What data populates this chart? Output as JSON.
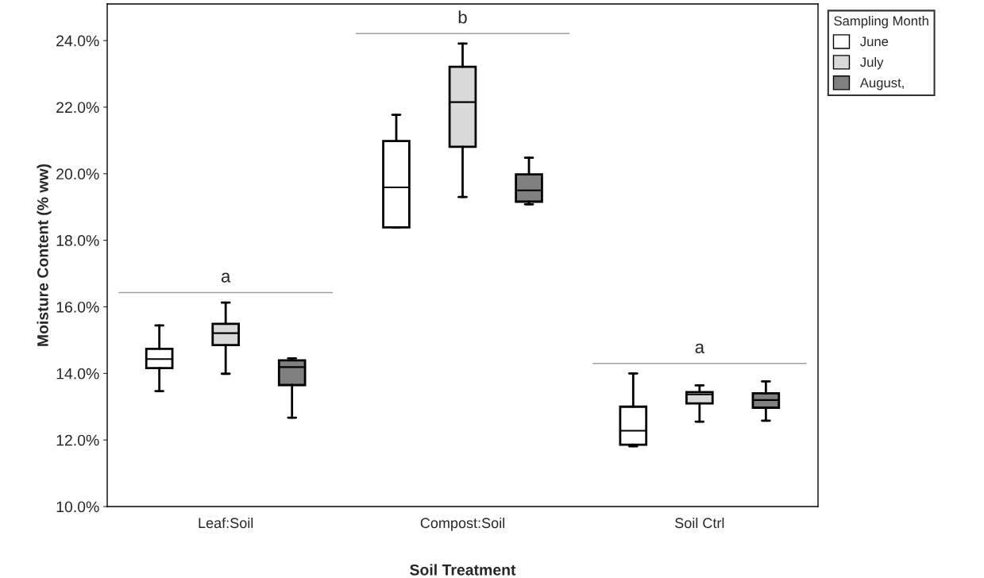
{
  "chart_data": {
    "type": "box",
    "xlabel": "Soil Treatment",
    "ylabel": "Moisture Content (% ww)",
    "legend_title": "Sampling Month",
    "categories": [
      "Leaf:Soil",
      "Compost:Soil",
      "Soil Ctrl"
    ],
    "series": [
      {
        "name": "June",
        "color": "#ffffff",
        "boxes": [
          {
            "low": 13.47,
            "q1": 14.16,
            "median": 14.43,
            "q3": 14.74,
            "high": 15.44
          },
          {
            "low": 18.39,
            "q1": 18.39,
            "median": 19.59,
            "q3": 20.98,
            "high": 21.77
          },
          {
            "low": 11.81,
            "q1": 11.86,
            "median": 12.28,
            "q3": 13.0,
            "high": 14.0
          }
        ]
      },
      {
        "name": "July",
        "color": "#d9d9d9",
        "boxes": [
          {
            "low": 13.99,
            "q1": 14.85,
            "median": 15.21,
            "q3": 15.49,
            "high": 16.13
          },
          {
            "low": 19.3,
            "q1": 20.81,
            "median": 22.15,
            "q3": 23.21,
            "high": 23.91
          },
          {
            "low": 12.55,
            "q1": 13.1,
            "median": 13.37,
            "q3": 13.44,
            "high": 13.64
          }
        ]
      },
      {
        "name": "August,",
        "color": "#808080",
        "boxes": [
          {
            "low": 12.67,
            "q1": 13.65,
            "median": 14.19,
            "q3": 14.39,
            "high": 14.45
          },
          {
            "low": 19.08,
            "q1": 19.16,
            "median": 19.5,
            "q3": 19.98,
            "high": 20.48
          },
          {
            "low": 12.58,
            "q1": 12.97,
            "median": 13.2,
            "q3": 13.4,
            "high": 13.76
          }
        ]
      }
    ],
    "annotations": [
      "a",
      "b",
      "a"
    ],
    "ylim": [
      10,
      25.1
    ],
    "yticks": [
      {
        "value": 10,
        "label": "10.0%"
      },
      {
        "value": 12,
        "label": "12.0%"
      },
      {
        "value": 14,
        "label": "14.0%"
      },
      {
        "value": 16,
        "label": "16.0%"
      },
      {
        "value": 18,
        "label": "18.0%"
      },
      {
        "value": 20,
        "label": "20.0%"
      },
      {
        "value": 22,
        "label": "22.0%"
      },
      {
        "value": 24,
        "label": "24.0%"
      }
    ],
    "legend": "top right",
    "grid": false
  }
}
